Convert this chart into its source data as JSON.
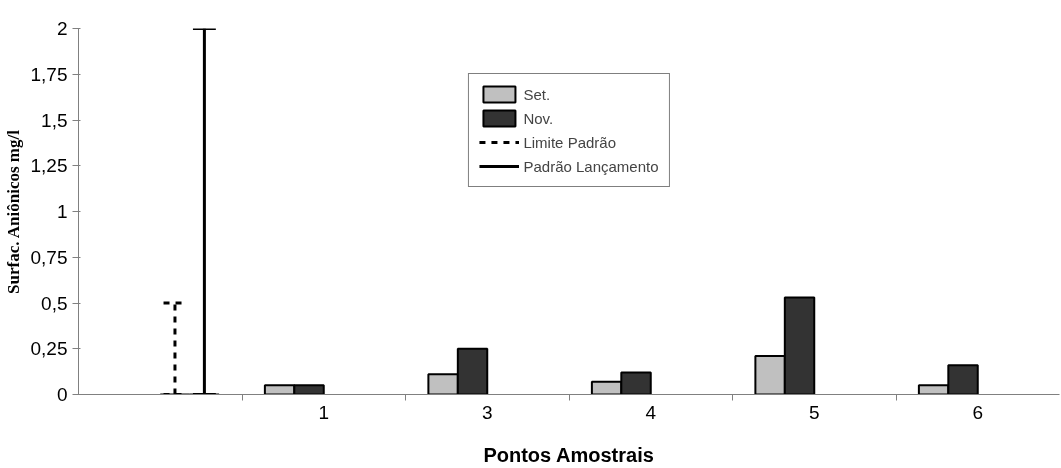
{
  "chart_data": {
    "type": "bar",
    "xlabel": "Pontos Amostrais",
    "ylabel": "Surfac. Aniônicos mg/l",
    "categories": [
      null,
      "1",
      "3",
      "4",
      "5",
      "6"
    ],
    "series": [
      {
        "name": "Set.",
        "color": "#c0c0c0",
        "values": [
          null,
          0.05,
          0.11,
          0.07,
          0.21,
          0.05
        ]
      },
      {
        "name": "Nov.",
        "color": "#333333",
        "values": [
          null,
          0.05,
          0.25,
          0.12,
          0.53,
          0.16
        ]
      },
      {
        "name": "Limite Padrão",
        "color": "#000000",
        "line_style": "dashed",
        "values": [
          0,
          null,
          null,
          null,
          null,
          null
        ],
        "errors": [
          [
            0,
            0.5
          ],
          null,
          null,
          null,
          null,
          null
        ]
      },
      {
        "name": "Padrão Lançamento",
        "color": "#000000",
        "line_style": "solid",
        "values": [
          0,
          null,
          null,
          null,
          null,
          null
        ],
        "errors": [
          [
            0,
            2
          ],
          null,
          null,
          null,
          null,
          null
        ]
      }
    ],
    "ylim": [
      0,
      2
    ],
    "yticks": [
      0,
      {
        "value": 0.25,
        "label": "0,25"
      },
      {
        "value": 0.5,
        "label": "0,5"
      },
      {
        "value": 0.75,
        "label": "0,75"
      },
      1,
      {
        "value": 1.25,
        "label": "1,25"
      },
      {
        "value": 1.5,
        "label": "1,5"
      },
      {
        "value": 1.75,
        "label": "1,75"
      },
      2
    ],
    "grid": false,
    "legend": "top"
  }
}
